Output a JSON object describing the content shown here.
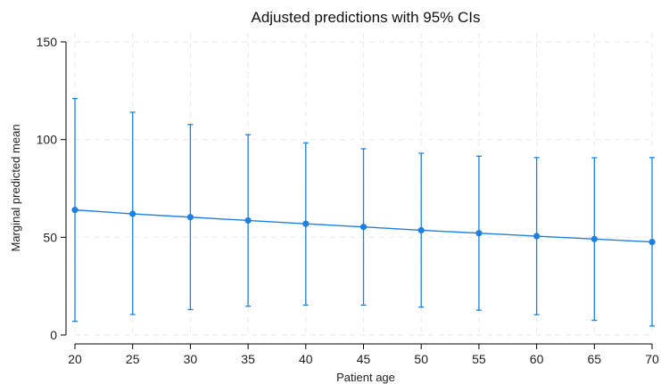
{
  "chart_data": {
    "type": "line",
    "title": "Adjusted predictions with 95% CIs",
    "xlabel": "Patient age",
    "ylabel": "Marginal predicted mean",
    "x": [
      20,
      25,
      30,
      35,
      40,
      45,
      50,
      55,
      60,
      65,
      70
    ],
    "xlim": [
      20,
      70
    ],
    "ylim": [
      0,
      150
    ],
    "xticks": [
      20,
      25,
      30,
      35,
      40,
      45,
      50,
      55,
      60,
      65,
      70
    ],
    "yticks": [
      0,
      50,
      100,
      150
    ],
    "grid": true,
    "series": [
      {
        "values": [
          64,
          62,
          60.3,
          58.6,
          56.9,
          55.3,
          53.6,
          52.1,
          50.6,
          49.1,
          47.6
        ],
        "ci_lower": [
          7,
          10.5,
          13,
          14.7,
          15.3,
          15.3,
          14.3,
          12.7,
          10.4,
          7.5,
          4.6
        ],
        "ci_upper": [
          121,
          114,
          107.7,
          102.5,
          98.3,
          95.3,
          93,
          91.5,
          90.8,
          90.7,
          90.8
        ],
        "color": "#1f7fe0"
      }
    ]
  }
}
